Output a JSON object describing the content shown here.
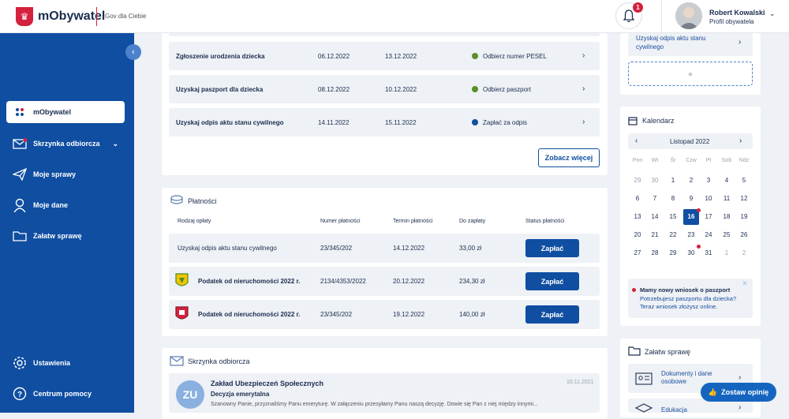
{
  "app": {
    "name": "mObywatel",
    "tagline": "Gov dla Ciebie"
  },
  "notifications": {
    "count": "1"
  },
  "user": {
    "name": "Robert Kowalski",
    "role": "Profil obywatela"
  },
  "nav": {
    "collapse": "‹",
    "items": [
      {
        "label": "mObywatel"
      },
      {
        "label": "Skrzynka odbiorcza"
      },
      {
        "label": "Moje sprawy"
      },
      {
        "label": "Moje dane"
      },
      {
        "label": "Załatw sprawę"
      }
    ],
    "settings": "Ustawienia",
    "help": "Centrum pomocy"
  },
  "cases": {
    "rows": [
      {
        "name": "Zgłoszenie urodzenia dziecka",
        "date1": "06.12.2022",
        "date2": "13.12.2022",
        "status": "Odbierz numer PESEL",
        "status_color": "#5a8f29"
      },
      {
        "name": "Uzyskaj paszport dla dziecka",
        "date1": "08.12.2022",
        "date2": "10.12.2022",
        "status": "Odbierz paszport",
        "status_color": "#5a8f29"
      },
      {
        "name": "Uzyskaj odpis aktu stanu cywilnego",
        "date1": "14.11.2022",
        "date2": "15.11.2022",
        "status": "Zapłać za odpis",
        "status_color": "#0f4ea1"
      }
    ],
    "more": "Zobacz więcej"
  },
  "payments": {
    "title": "Płatności",
    "headers": {
      "type": "Rodzaj opłaty",
      "number": "Numer płatności",
      "deadline": "Termin płatności",
      "amount": "Do zapłaty",
      "status": "Status płatności"
    },
    "rows": [
      {
        "name": "Uzyskaj odpis aktu stanu cywilnego",
        "number": "23/345/202",
        "deadline": "14.12.2022",
        "amount": "33,00 zł",
        "action": "Zapłać"
      },
      {
        "name": "Podatek od nieruchomości 2022 r.",
        "number": "2134/4353/2022",
        "deadline": "20.12.2022",
        "amount": "234,30 zł",
        "action": "Zapłać"
      },
      {
        "name": "Podatek od nieruchomości 2022 r.",
        "number": "23/345/202",
        "deadline": "19.12.2022",
        "amount": "140,00 zł",
        "action": "Zapłać"
      }
    ]
  },
  "inbox": {
    "title": "Skrzynka odbiorcza",
    "message": {
      "initials": "ZU",
      "sender": "Zakład Ubezpieczeń Społecznych",
      "subject": "Decyzja emerytalna",
      "preview": "Szanowny Panie, przyznaliśmy Panu emeryturę. W załączeniu przesyłamy Panu naszą decyzję. Dowie się Pan z niej między innymi...",
      "date": "10.11.2021"
    }
  },
  "right_top": {
    "item": "Uzyskaj odpis aktu stanu cywilnego",
    "add": "+"
  },
  "calendar": {
    "title": "Kalendarz",
    "month": "Listopad 2022",
    "weekdays": [
      "Pon",
      "Wt",
      "Śr",
      "Czw",
      "Pt",
      "Sob",
      "Ndz"
    ],
    "weeks": [
      [
        "29",
        "30",
        "1",
        "2",
        "3",
        "4",
        "5"
      ],
      [
        "6",
        "7",
        "8",
        "9",
        "10",
        "11",
        "12"
      ],
      [
        "13",
        "14",
        "15",
        "16",
        "17",
        "18",
        "19"
      ],
      [
        "20",
        "21",
        "22",
        "23",
        "24",
        "25",
        "26"
      ],
      [
        "27",
        "28",
        "29",
        "30",
        "31",
        "1",
        "2"
      ]
    ],
    "notice": {
      "title": "Mamy nowy wniosek o paszport",
      "text1": "Potrzebujesz paszportu dla dziecka?",
      "text2": "Teraz wniosek złożysz online."
    }
  },
  "tasks": {
    "title": "Załatw sprawę",
    "items": [
      {
        "label1": "Dokumenty i dane",
        "label2": "osobowe"
      },
      {
        "label1": "Edukacja",
        "label2": ""
      }
    ]
  },
  "feedback": {
    "label": "Zostaw opinię"
  }
}
